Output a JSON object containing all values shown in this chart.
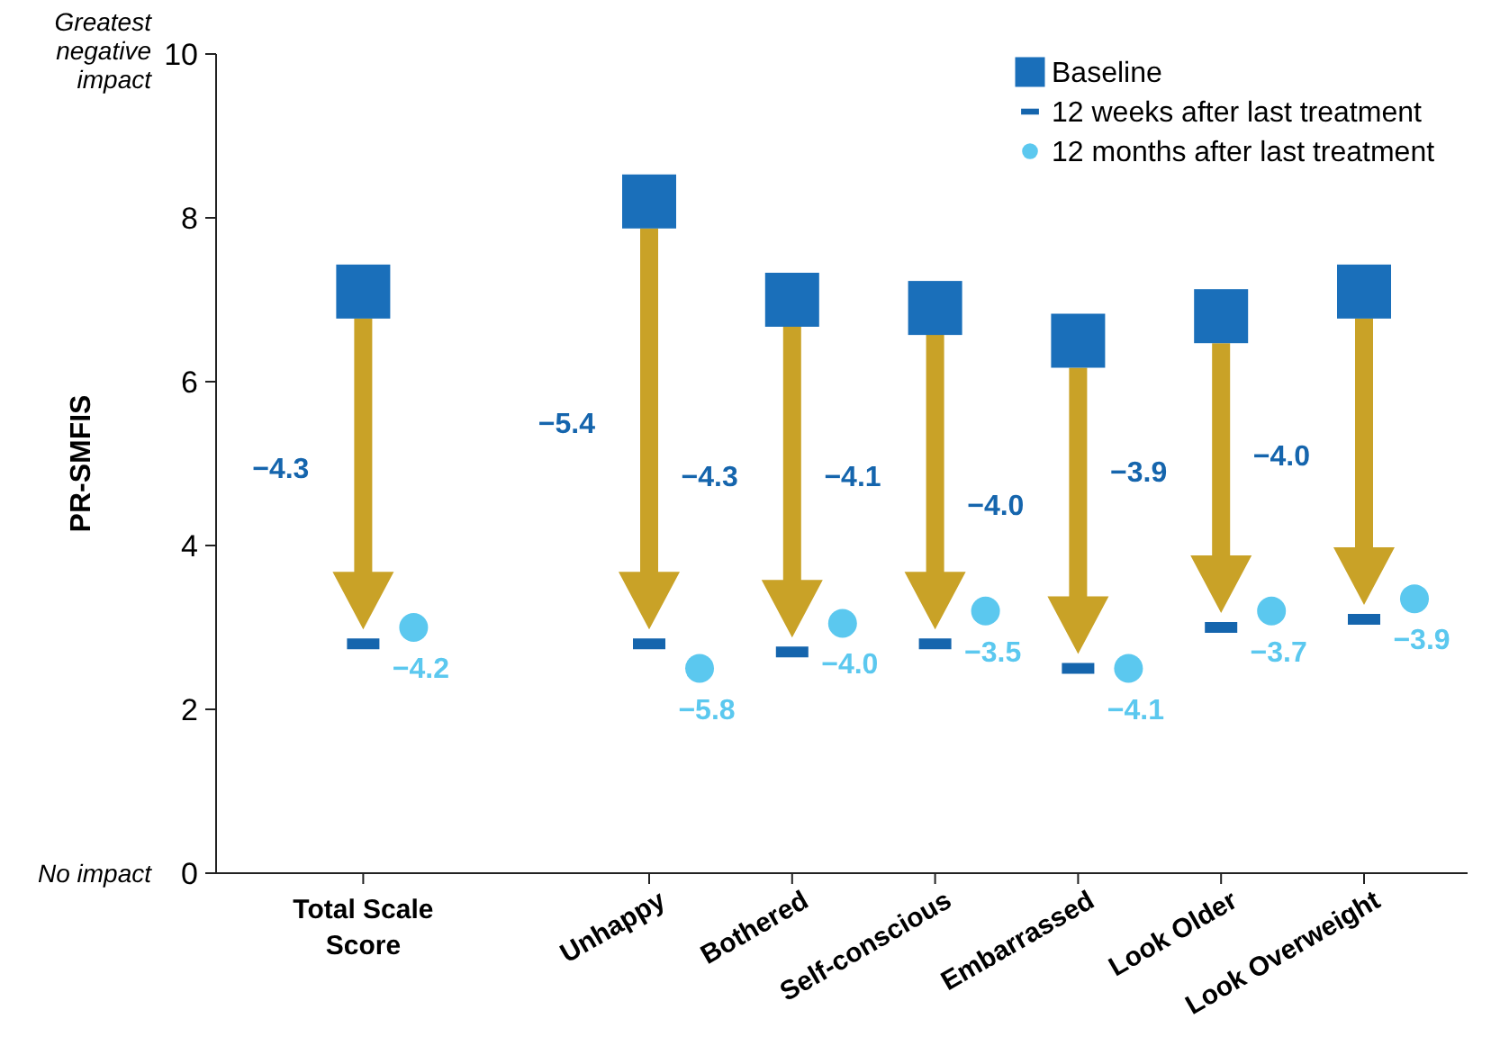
{
  "chart_data": {
    "type": "scatter",
    "categories": [
      "Total Scale Score",
      null,
      "Unhappy",
      "Bothered",
      "Self-conscious",
      "Embarrassed",
      "Look Older",
      "Look Overweight"
    ],
    "ylabel": "PR-SMFIS",
    "ylim": [
      0,
      10
    ],
    "yticks": [
      0,
      2,
      4,
      6,
      8,
      10
    ],
    "annotations": [
      "Greatest negative impact",
      "No impact",
      "−4.3",
      "−5.4",
      "−4.3",
      "−4.1",
      "−4.0",
      "−3.9",
      "−4.0",
      "−4.2",
      "−5.8",
      "−4.0",
      "−3.5",
      "−4.1",
      "−3.7",
      "−3.9"
    ],
    "series": [
      {
        "name": "Baseline",
        "color": "#1a6fba",
        "marker": "square",
        "values": [
          7.1,
          null,
          8.2,
          7.0,
          6.9,
          6.5,
          6.8,
          7.1
        ]
      },
      {
        "name": "12 weeks after last treatment",
        "color": "#1565ad",
        "values": [
          2.8,
          null,
          2.8,
          2.7,
          2.8,
          2.5,
          3.0,
          3.1
        ]
      },
      {
        "name": "12 months after last treatment",
        "color": "#5bc8ef",
        "marker": "circle",
        "values": [
          3.0,
          null,
          2.5,
          3.05,
          3.2,
          2.5,
          3.2,
          3.35
        ]
      }
    ],
    "grid": false,
    "legend": "top right"
  }
}
